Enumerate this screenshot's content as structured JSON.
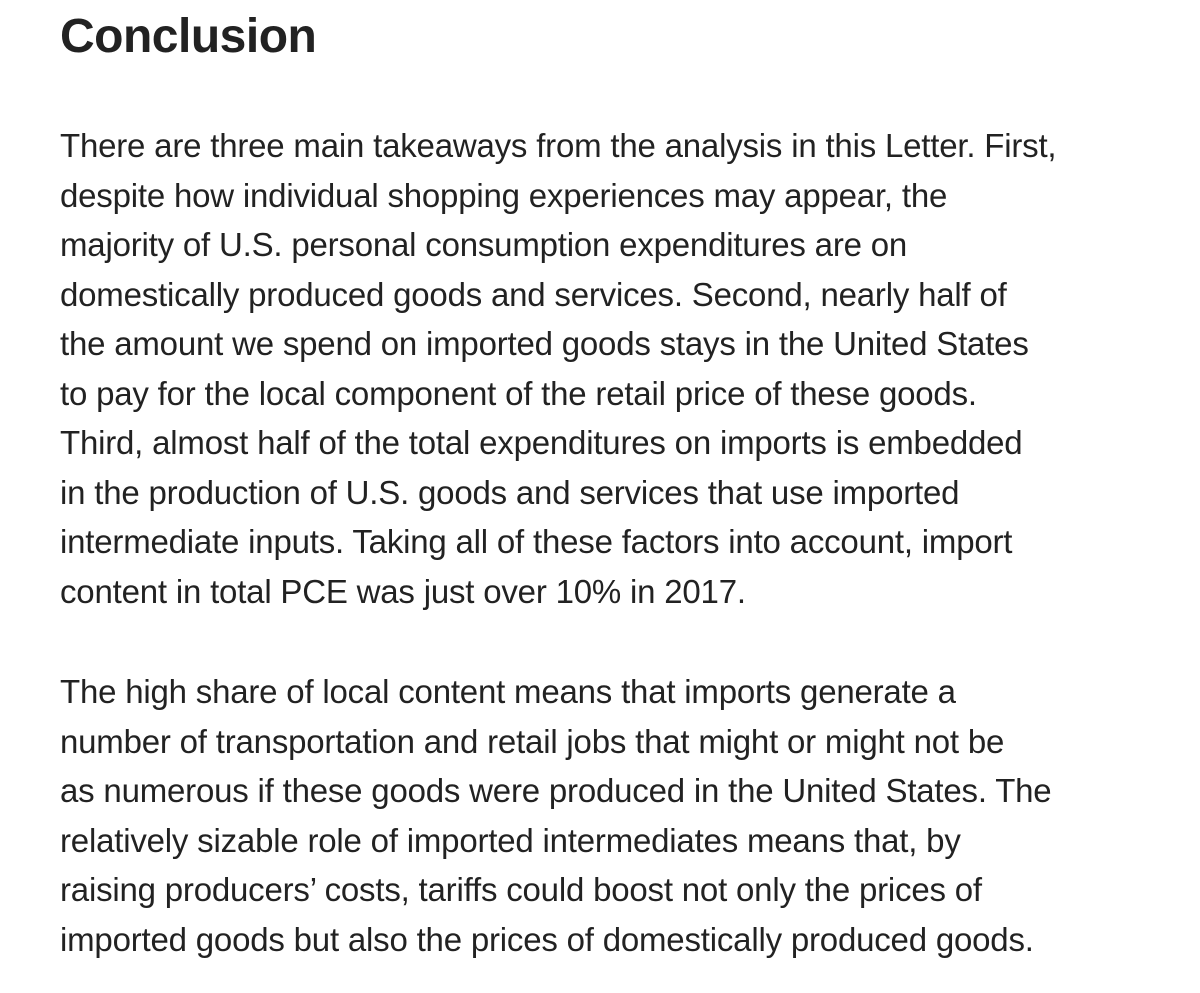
{
  "heading": "Conclusion",
  "paragraphs": [
    {
      "lines": [
        "There are three main takeaways from the analysis in this Letter. First,",
        "despite how individual shopping experiences may appear, the",
        "majority of U.S. personal consumption expenditures are on",
        "domestically produced goods and services. Second, nearly half of",
        "the amount we spend on imported goods stays in the United States",
        "to pay for the local component of the retail price of these goods.",
        "Third, almost half of the total expenditures on imports is embedded",
        "in the production of U.S. goods and services that use imported",
        "intermediate inputs. Taking all of these factors into account, import",
        "content in total PCE was just over 10% in 2017."
      ]
    },
    {
      "lines": [
        "The high share of local content means that imports generate a",
        "number of transportation and retail jobs that might or might not be",
        "as numerous if these goods were produced in the United States. The",
        "relatively sizable role of imported intermediates means that, by",
        "raising producers’ costs, tariffs could boost not only the prices of",
        "imported goods but also the prices of domestically produced goods."
      ]
    }
  ]
}
